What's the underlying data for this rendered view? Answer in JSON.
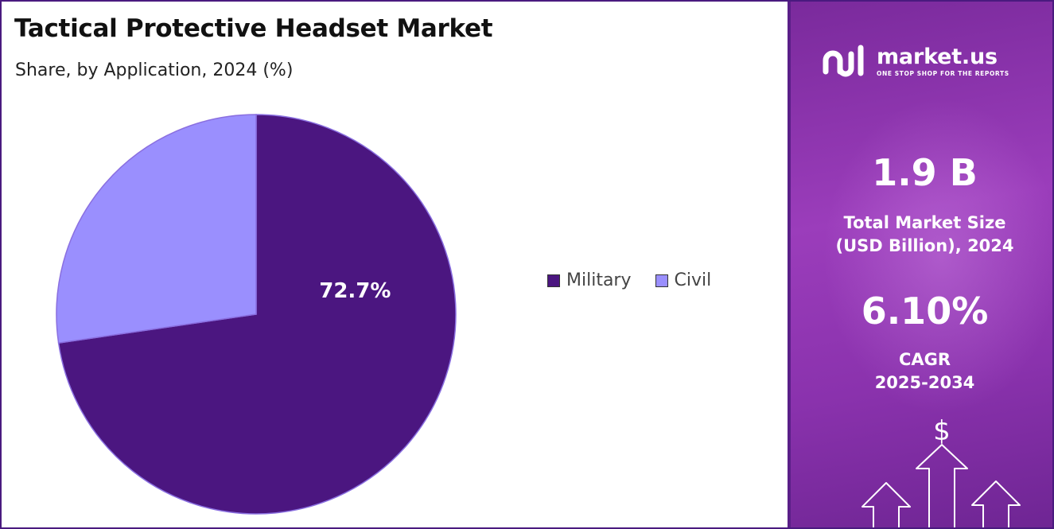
{
  "header": {
    "title": "Tactical Protective Headset Market",
    "subtitle": "Share, by Application, 2024 (%)"
  },
  "chart_data": {
    "type": "pie",
    "title": "Tactical Protective Headset Market",
    "subtitle": "Share, by Application, 2024 (%)",
    "slices": [
      {
        "label": "Military",
        "value": 72.7,
        "color": "#4b1680",
        "data_label": "72.7%"
      },
      {
        "label": "Civil",
        "value": 27.3,
        "color": "#9a8ffe",
        "data_label": ""
      }
    ],
    "legend_position": "right"
  },
  "legend": {
    "items": [
      {
        "label": "Military",
        "color": "#4b1680"
      },
      {
        "label": "Civil",
        "color": "#9a8ffe"
      }
    ]
  },
  "sidebar": {
    "brand_name": "market.us",
    "brand_tagline": "ONE STOP SHOP FOR THE REPORTS",
    "market_size_value": "1.9 B",
    "market_size_label_line1": "Total Market Size",
    "market_size_label_line2": "(USD Billion), 2024",
    "cagr_value": "6.10%",
    "cagr_label_line1": "CAGR",
    "cagr_label_line2": "2025-2034",
    "currency_symbol": "$"
  },
  "colors": {
    "accent": "#4b1680",
    "secondary": "#9a8ffe",
    "panel": "#8a32ad"
  }
}
